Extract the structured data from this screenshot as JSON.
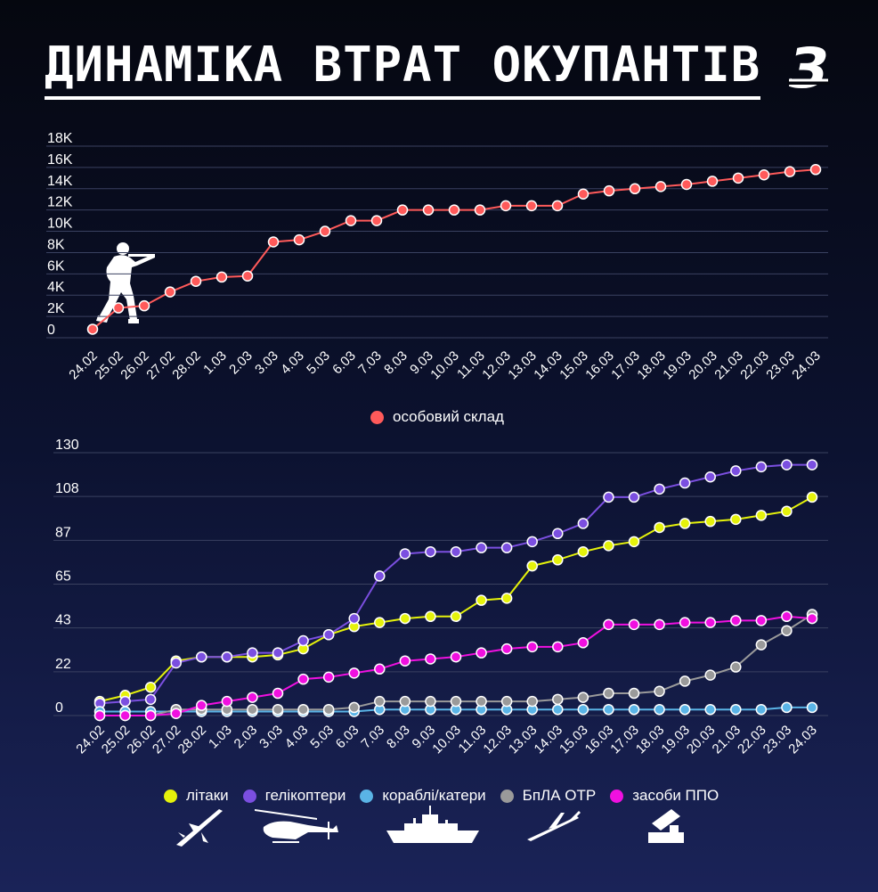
{
  "title": "ДИНАМІКА ВТРАТ ОКУПАНТІВ",
  "logo_letter": "З",
  "chart_data": [
    {
      "type": "line",
      "categories": [
        "24.02",
        "25.02",
        "26.02",
        "27.02",
        "28.02",
        "1.03",
        "2.03",
        "3.03",
        "4.03",
        "5.03",
        "6.03",
        "7.03",
        "8.03",
        "9.03",
        "10.03",
        "11.03",
        "12.03",
        "13.03",
        "14.03",
        "15.03",
        "16.03",
        "17.03",
        "18.03",
        "19.03",
        "20.03",
        "21.03",
        "22.03",
        "23.03",
        "24.03"
      ],
      "yticks": [
        "0",
        "2K",
        "4K",
        "6K",
        "8K",
        "10K",
        "12K",
        "14K",
        "16K",
        "18K"
      ],
      "ylim": [
        0,
        18000
      ],
      "series": [
        {
          "name": "особовий склад",
          "color": "#ff5a5a",
          "values": [
            800,
            2800,
            3000,
            4300,
            5300,
            5700,
            5800,
            9000,
            9200,
            10000,
            11000,
            11000,
            12000,
            12000,
            12000,
            12000,
            12400,
            12400,
            12400,
            13500,
            13800,
            14000,
            14200,
            14400,
            14700,
            15000,
            15300,
            15600,
            15800
          ]
        }
      ]
    },
    {
      "type": "line",
      "categories": [
        "24.02",
        "25.02",
        "26.02",
        "27.02",
        "28.02",
        "1.03",
        "2.03",
        "3.03",
        "4.03",
        "5.03",
        "6.03",
        "7.03",
        "8.03",
        "9.03",
        "10.03",
        "11.03",
        "12.03",
        "13.03",
        "14.03",
        "15.03",
        "16.03",
        "17.03",
        "18.03",
        "19.03",
        "20.03",
        "21.03",
        "22.03",
        "23.03",
        "24.03"
      ],
      "yticks": [
        "0",
        "22",
        "43",
        "65",
        "87",
        "108",
        "130"
      ],
      "ylim": [
        0,
        130
      ],
      "series": [
        {
          "name": "літаки",
          "color": "#e5f20b",
          "values": [
            7,
            10,
            14,
            27,
            29,
            29,
            29,
            30,
            33,
            40,
            44,
            46,
            48,
            49,
            49,
            57,
            58,
            74,
            77,
            81,
            84,
            86,
            93,
            95,
            96,
            97,
            99,
            101,
            108
          ]
        },
        {
          "name": "гелікоптери",
          "color": "#7b4fe0",
          "values": [
            6,
            7,
            8,
            26,
            29,
            29,
            31,
            31,
            37,
            40,
            48,
            69,
            80,
            81,
            81,
            83,
            83,
            86,
            90,
            95,
            108,
            108,
            112,
            115,
            118,
            121,
            123,
            124,
            124
          ]
        },
        {
          "name": "кораблі/катери",
          "color": "#5ab4e6",
          "values": [
            2,
            2,
            2,
            2,
            2,
            2,
            2,
            2,
            2,
            2,
            2,
            3,
            3,
            3,
            3,
            3,
            3,
            3,
            3,
            3,
            3,
            3,
            3,
            3,
            3,
            3,
            3,
            4,
            4
          ]
        },
        {
          "name": "БпЛА ОТР",
          "color": "#9a9a9a",
          "values": [
            0,
            0,
            0,
            3,
            3,
            3,
            3,
            3,
            3,
            3,
            4,
            7,
            7,
            7,
            7,
            7,
            7,
            7,
            8,
            9,
            11,
            11,
            12,
            17,
            20,
            24,
            35,
            42,
            50
          ]
        },
        {
          "name": "засоби ППО",
          "color": "#f010e0",
          "values": [
            0,
            0,
            0,
            1,
            5,
            7,
            9,
            11,
            18,
            19,
            21,
            23,
            27,
            28,
            29,
            31,
            33,
            34,
            34,
            36,
            45,
            45,
            45,
            46,
            46,
            47,
            47,
            49,
            48
          ]
        }
      ]
    }
  ]
}
